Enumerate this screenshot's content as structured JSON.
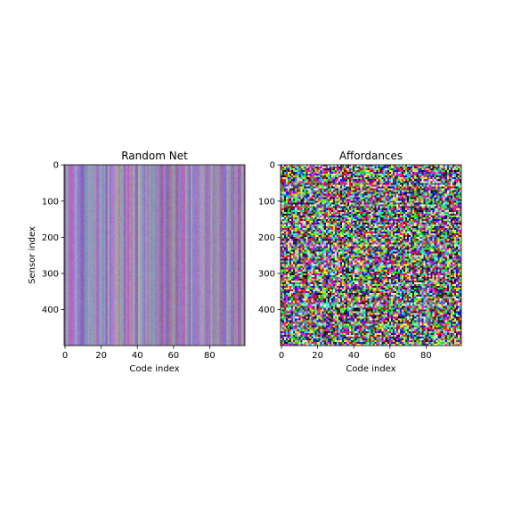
{
  "chart_data": [
    {
      "type": "heatmap",
      "title": "Random Net",
      "xlabel": "Code index",
      "ylabel": "Sensor index",
      "xlim": [
        -0.5,
        99.5
      ],
      "ylim": [
        499.5,
        -0.5
      ],
      "x_ticks": [
        0,
        20,
        40,
        60,
        80
      ],
      "y_ticks": [
        0,
        100,
        200,
        300,
        400
      ],
      "n_columns": 100,
      "n_rows": 500,
      "color_encoding": "RGB",
      "base_color": "#9a84b6",
      "pattern": "vertical stripes: column-wise color variation, nearly constant down each column",
      "grid": false
    },
    {
      "type": "heatmap",
      "title": "Affordances",
      "xlabel": "Code index",
      "ylabel": "",
      "xlim": [
        -0.5,
        99.5
      ],
      "ylim": [
        499.5,
        -0.5
      ],
      "x_ticks": [
        0,
        20,
        40,
        60,
        80
      ],
      "y_ticks": [
        0,
        100,
        200,
        300,
        400
      ],
      "n_columns": 100,
      "n_rows": 500,
      "color_encoding": "RGB",
      "pattern": "high-contrast multicolor noise with horizontal banding",
      "grid": false
    }
  ]
}
